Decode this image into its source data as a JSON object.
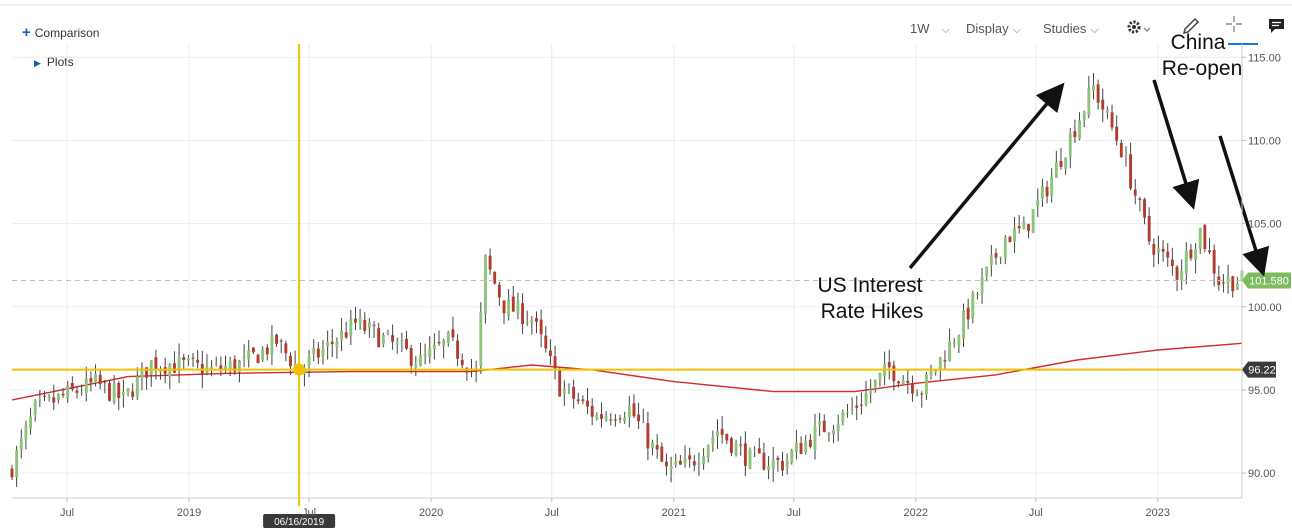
{
  "toolbar": {
    "comparison_label": "Comparison",
    "plots_label": "Plots",
    "interval_label": "1W",
    "display_label": "Display",
    "studies_label": "Studies",
    "icons": [
      "plus-icon",
      "chevron-down-icon",
      "gear-icon",
      "pencil-icon",
      "crosshair-icon",
      "comment-icon"
    ]
  },
  "colors": {
    "up": "#8cc47a",
    "down": "#b23b2e",
    "moving_average": "#d42a2a",
    "crosshair": "#f2c200",
    "last_price_badge": "#7dbb5f",
    "crosshair_price_badge": "#3a3a3a"
  },
  "annotations": {
    "us_rates": [
      "US Interest",
      "Rate Hikes"
    ],
    "china": [
      "China",
      "Re-open"
    ]
  },
  "chart_data": {
    "type": "candlestick",
    "interval": "weekly",
    "y_axis": {
      "position": "right",
      "ylim": [
        88.5,
        115.8
      ],
      "ticks": [
        "115.00",
        "110.00",
        "105.00",
        "100.00",
        "95.00",
        "90.00"
      ]
    },
    "x_axis": {
      "range": [
        "2018-04-09",
        "2023-05-08"
      ],
      "ticks": [
        {
          "label": "Jul",
          "date": "2018-07-01"
        },
        {
          "label": "2019",
          "date": "2019-01-01"
        },
        {
          "label": "Jul",
          "date": "2019-07-01"
        },
        {
          "label": "2020",
          "date": "2020-01-01"
        },
        {
          "label": "Jul",
          "date": "2020-07-01"
        },
        {
          "label": "2021",
          "date": "2021-01-01"
        },
        {
          "label": "Jul",
          "date": "2021-07-01"
        },
        {
          "label": "2022",
          "date": "2022-01-01"
        },
        {
          "label": "Jul",
          "date": "2022-07-01"
        },
        {
          "label": "2023",
          "date": "2023-01-01"
        }
      ]
    },
    "grid": true,
    "last_price": {
      "value": 101.58,
      "label": "101.580"
    },
    "crosshair": {
      "date": "2019-06-16",
      "date_label": "06/16/2019",
      "value": 96.22,
      "label": "96.22"
    },
    "close_path": [
      [
        "2018-04-09",
        90.4
      ],
      [
        "2018-05-14",
        93.8
      ],
      [
        "2018-06-25",
        94.6
      ],
      [
        "2018-08-13",
        95.4
      ],
      [
        "2018-09-24",
        94.4
      ],
      [
        "2018-11-05",
        96.6
      ],
      [
        "2018-12-17",
        96.5
      ],
      [
        "2019-02-04",
        96.2
      ],
      [
        "2019-03-25",
        96.6
      ],
      [
        "2019-05-13",
        97.9
      ],
      [
        "2019-06-16",
        96.2
      ],
      [
        "2019-07-29",
        97.6
      ],
      [
        "2019-09-09",
        99.0
      ],
      [
        "2019-10-28",
        97.9
      ],
      [
        "2019-12-16",
        96.7
      ],
      [
        "2020-01-27",
        97.9
      ],
      [
        "2020-03-09",
        96.0
      ],
      [
        "2020-03-23",
        102.7
      ],
      [
        "2020-04-20",
        100.1
      ],
      [
        "2020-06-01",
        99.3
      ],
      [
        "2020-07-13",
        95.2
      ],
      [
        "2020-09-07",
        93.4
      ],
      [
        "2020-10-26",
        93.9
      ],
      [
        "2020-12-21",
        90.1
      ],
      [
        "2021-01-25",
        90.5
      ],
      [
        "2021-03-08",
        92.6
      ],
      [
        "2021-04-26",
        90.8
      ],
      [
        "2021-06-14",
        90.6
      ],
      [
        "2021-08-02",
        92.4
      ],
      [
        "2021-09-27",
        93.8
      ],
      [
        "2021-11-22",
        96.3
      ],
      [
        "2022-01-10",
        95.0
      ],
      [
        "2022-03-07",
        98.6
      ],
      [
        "2022-05-16",
        104.2
      ],
      [
        "2022-06-13",
        104.6
      ],
      [
        "2022-07-18",
        107.2
      ],
      [
        "2022-09-26",
        113.2
      ],
      [
        "2022-11-07",
        109.5
      ],
      [
        "2022-12-19",
        104.0
      ],
      [
        "2023-01-30",
        102.0
      ],
      [
        "2023-03-06",
        104.6
      ],
      [
        "2023-04-03",
        101.6
      ],
      [
        "2023-05-08",
        101.58
      ]
    ],
    "moving_average_path": [
      [
        "2018-04-09",
        94.4
      ],
      [
        "2018-10-01",
        95.8
      ],
      [
        "2019-03-04",
        96.0
      ],
      [
        "2019-09-02",
        96.1
      ],
      [
        "2020-03-02",
        96.1
      ],
      [
        "2020-06-01",
        96.5
      ],
      [
        "2020-09-01",
        96.2
      ],
      [
        "2021-01-01",
        95.5
      ],
      [
        "2021-06-01",
        94.9
      ],
      [
        "2021-10-01",
        94.9
      ],
      [
        "2022-01-01",
        95.4
      ],
      [
        "2022-05-01",
        95.9
      ],
      [
        "2022-09-01",
        96.8
      ],
      [
        "2023-01-01",
        97.4
      ],
      [
        "2023-05-08",
        97.8
      ]
    ]
  }
}
